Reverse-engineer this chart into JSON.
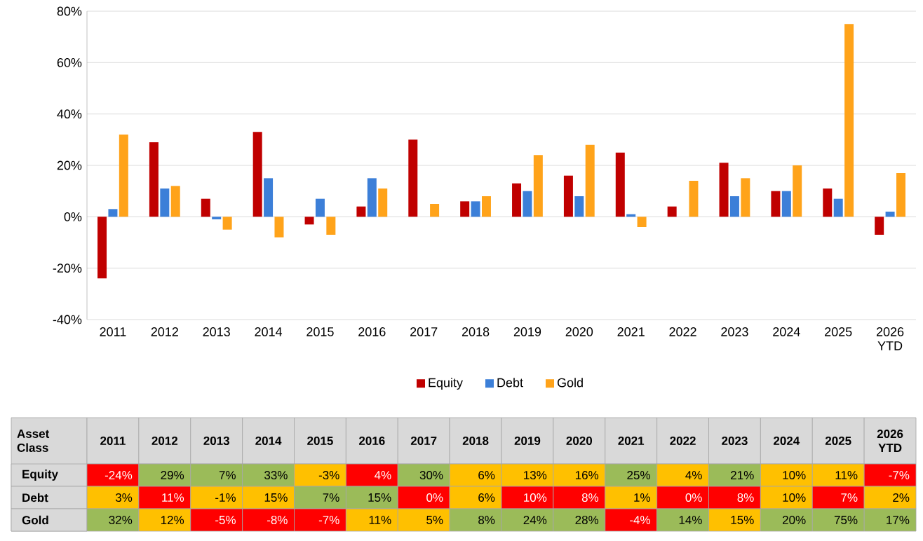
{
  "chart_data": {
    "type": "bar",
    "categories": [
      "2011",
      "2012",
      "2013",
      "2014",
      "2015",
      "2016",
      "2017",
      "2018",
      "2019",
      "2020",
      "2021",
      "2022",
      "2023",
      "2024",
      "2025",
      "2026 YTD"
    ],
    "series": [
      {
        "name": "Equity",
        "color": "#c00000",
        "values": [
          -24,
          29,
          7,
          33,
          -3,
          4,
          30,
          6,
          13,
          16,
          25,
          4,
          21,
          10,
          11,
          -7
        ],
        "value_labels": [
          "-24%",
          "29%",
          "7%",
          "33%",
          "-3%",
          "4%",
          "30%",
          "6%",
          "13%",
          "16%",
          "25%",
          "4%",
          "21%",
          "10%",
          "11%",
          "-7%"
        ]
      },
      {
        "name": "Debt",
        "color": "#3c7fd8",
        "values": [
          3,
          11,
          -1,
          15,
          7,
          15,
          0,
          6,
          10,
          8,
          1,
          0,
          8,
          10,
          7,
          2
        ],
        "value_labels": [
          "3%",
          "11%",
          "-1%",
          "15%",
          "7%",
          "15%",
          "0%",
          "6%",
          "10%",
          "8%",
          "1%",
          "0%",
          "8%",
          "10%",
          "7%",
          "2%"
        ]
      },
      {
        "name": "Gold",
        "color": "#ffa31a",
        "values": [
          32,
          12,
          -5,
          -8,
          -7,
          11,
          5,
          8,
          24,
          28,
          -4,
          14,
          15,
          20,
          75,
          17
        ],
        "value_labels": [
          "32%",
          "12%",
          "-5%",
          "-8%",
          "-7%",
          "11%",
          "5%",
          "8%",
          "24%",
          "28%",
          "-4%",
          "14%",
          "15%",
          "20%",
          "75%",
          "17%"
        ]
      }
    ],
    "ylim": [
      -40,
      80
    ],
    "yticks": [
      {
        "value": -40,
        "label": "-40%"
      },
      {
        "value": -20,
        "label": "-20%"
      },
      {
        "value": 0,
        "label": "0%"
      },
      {
        "value": 20,
        "label": "20%"
      },
      {
        "value": 40,
        "label": "40%"
      },
      {
        "value": 60,
        "label": "60%"
      },
      {
        "value": 80,
        "label": "80%"
      }
    ],
    "grid": "y",
    "legend": "bottom",
    "annotations": [
      "Asset Class"
    ]
  }
}
